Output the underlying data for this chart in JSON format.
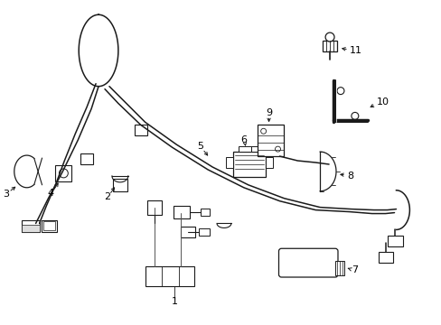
{
  "background_color": "#ffffff",
  "line_color": "#1a1a1a",
  "fig_width": 4.89,
  "fig_height": 3.6,
  "dpi": 100
}
